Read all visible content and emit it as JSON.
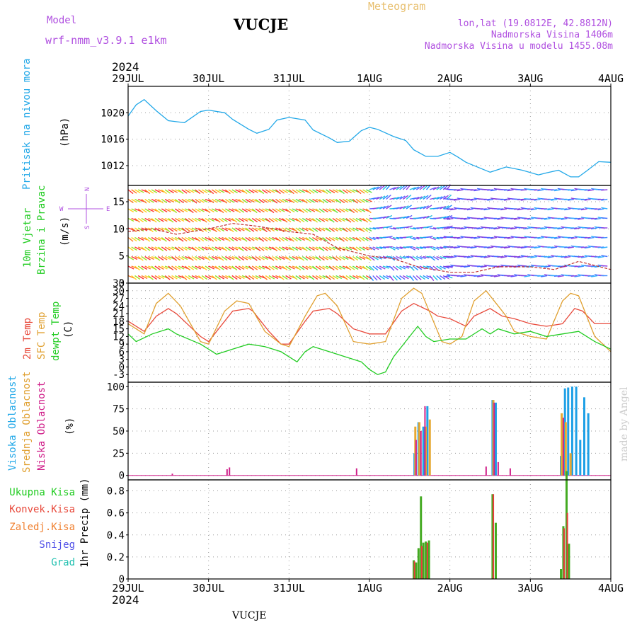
{
  "header": {
    "model_label": "Model",
    "model_name": "wrf-nmm_v3.9.1 e1km",
    "station": "VUCJE",
    "product": "Meteogram",
    "lonlat": "lon,lat (19.0812E, 42.8812N)",
    "altitude": "Nadmorska Visina 1406m",
    "model_altitude": "Nadmorska Visina u modelu 1455.08m",
    "footer_station": "VUCJE",
    "credit": "made by Angel"
  },
  "colors": {
    "pressure": "#22a8e8",
    "temp2m": "#e84a3c",
    "sfc": "#e0a030",
    "dewpt": "#22cc22",
    "high_cloud": "#1ea0e6",
    "mid_cloud": "#e6a832",
    "low_cloud": "#d0208a",
    "total_precip": "#44aa22",
    "conv_precip": "#e83c3c",
    "frozen_precip": "#f08030",
    "snow": "#5050e8",
    "hail": "#20c0b0",
    "header_purple": "#b050e0",
    "header_gold": "#e8c070",
    "grid": "#999999"
  },
  "time_axis": {
    "year": "2024",
    "labels": [
      "29JUL",
      "30JUL",
      "31JUL",
      "1AUG",
      "2AUG",
      "3AUG",
      "4AUG"
    ],
    "days": [
      0,
      1,
      2,
      3,
      4,
      5,
      6
    ]
  },
  "panel_labels": {
    "pressure": {
      "label": "Pritisak na nivou mora",
      "unit": "(hPa)"
    },
    "wind": {
      "label1": "10m Vjetar",
      "label2": "Brzina i Pravac",
      "unit": "(m/s)",
      "compass_n": "N",
      "compass_s": "S",
      "compass_w": "W",
      "compass_e": "E"
    },
    "temp": {
      "label1": "2m Temp",
      "label2": "SFC Temp",
      "label3": "dewpt Temp",
      "unit": "(C)"
    },
    "cloud": {
      "label1": "Visoka Oblacnost",
      "label2": "Srednja Oblacnost",
      "label3": "Niska Oblacnost",
      "unit": "(%)"
    },
    "precip": {
      "label1": "Ukupna Kisa",
      "label2": "Konvek.Kisa",
      "label3": "Zaledj.Kisa",
      "label4": "Snijeg",
      "label5": "Grad",
      "unit": "1hr Precip (mm)"
    }
  },
  "chart_data": [
    {
      "type": "line",
      "name": "pressure",
      "ylim": [
        1009,
        1024
      ],
      "yticks": [
        1012,
        1016,
        1020
      ],
      "x": [
        0,
        0.1,
        0.2,
        0.35,
        0.5,
        0.7,
        0.9,
        1.0,
        1.2,
        1.3,
        1.5,
        1.6,
        1.75,
        1.85,
        2.0,
        2.2,
        2.3,
        2.5,
        2.6,
        2.75,
        2.9,
        3.0,
        3.1,
        3.3,
        3.45,
        3.55,
        3.7,
        3.85,
        4.0,
        4.1,
        4.2,
        4.4,
        4.5,
        4.7,
        4.9,
        5.1,
        5.2,
        5.35,
        5.5,
        5.6,
        5.7,
        5.85,
        6.0
      ],
      "y": [
        1019.5,
        1021.2,
        1022.0,
        1020.3,
        1018.8,
        1018.5,
        1020.2,
        1020.4,
        1020.0,
        1019.0,
        1017.5,
        1016.9,
        1017.5,
        1018.9,
        1019.3,
        1018.9,
        1017.4,
        1016.2,
        1015.5,
        1015.7,
        1017.3,
        1017.8,
        1017.5,
        1016.4,
        1015.8,
        1014.4,
        1013.4,
        1013.4,
        1014.0,
        1013.3,
        1012.5,
        1011.5,
        1011.0,
        1011.8,
        1011.3,
        1010.6,
        1010.9,
        1011.3,
        1010.3,
        1010.3,
        1011.2,
        1012.6,
        1012.5
      ]
    },
    {
      "type": "line",
      "name": "wind speed",
      "ylim": [
        0,
        18
      ],
      "yticks": [
        0,
        5,
        10,
        15
      ],
      "x": [
        0,
        0.3,
        0.6,
        1.0,
        1.3,
        1.6,
        2.0,
        2.3,
        2.6,
        3.0,
        3.3,
        3.6,
        4.0,
        4.3,
        4.6,
        5.0,
        5.3,
        5.6,
        6.0
      ],
      "y": [
        9.5,
        10.0,
        9.0,
        10.0,
        11.0,
        10.5,
        9.5,
        9.0,
        6.5,
        5.0,
        4.5,
        3.0,
        2.0,
        2.0,
        3.0,
        3.0,
        2.5,
        4.0,
        2.5
      ]
    },
    {
      "type": "line",
      "name": "temperature",
      "ylim": [
        -6,
        33
      ],
      "yticks": [
        -3,
        0,
        3,
        6,
        9,
        12,
        15,
        18,
        21,
        24,
        27,
        30,
        33
      ],
      "series": [
        {
          "name": "2m Temp",
          "x": [
            0,
            0.2,
            0.35,
            0.5,
            0.6,
            0.9,
            1.0,
            1.2,
            1.3,
            1.5,
            1.55,
            1.75,
            1.9,
            2.0,
            2.2,
            2.3,
            2.5,
            2.6,
            2.8,
            3.0,
            3.1,
            3.2,
            3.4,
            3.55,
            3.75,
            3.85,
            4.0,
            4.2,
            4.3,
            4.5,
            4.6,
            4.65,
            4.8,
            5.0,
            5.2,
            5.4,
            5.55,
            5.65,
            5.8,
            6.0
          ],
          "y": [
            18,
            14,
            20,
            23,
            21,
            12,
            10,
            18,
            22,
            23,
            22,
            14,
            9,
            9,
            18,
            22,
            23,
            21,
            15,
            13,
            13,
            13,
            22,
            25,
            22,
            20,
            19,
            16,
            20,
            23,
            21,
            20,
            19,
            17,
            16,
            17,
            23,
            22,
            17,
            17
          ]
        },
        {
          "name": "SFC Temp",
          "x": [
            0,
            0.2,
            0.35,
            0.5,
            0.65,
            0.9,
            1.0,
            1.2,
            1.35,
            1.5,
            1.7,
            1.9,
            2.0,
            2.2,
            2.35,
            2.45,
            2.6,
            2.8,
            3.0,
            3.2,
            3.4,
            3.55,
            3.65,
            3.9,
            4.0,
            4.15,
            4.3,
            4.45,
            4.6,
            4.7,
            4.8,
            5.0,
            5.2,
            5.4,
            5.5,
            5.6,
            5.8,
            6.0
          ],
          "y": [
            17,
            13,
            25,
            29,
            24,
            10,
            9,
            22,
            26,
            25,
            14,
            9,
            8,
            20,
            28,
            29,
            24,
            10,
            9,
            10,
            27,
            31,
            29,
            10,
            9,
            12,
            26,
            30,
            24,
            20,
            14,
            12,
            11,
            26,
            29,
            28,
            12,
            6
          ]
        },
        {
          "name": "dewpt Temp",
          "x": [
            0,
            0.1,
            0.3,
            0.5,
            0.6,
            0.9,
            1.0,
            1.1,
            1.3,
            1.5,
            1.7,
            1.9,
            2.0,
            2.1,
            2.2,
            2.3,
            2.5,
            2.7,
            2.9,
            3.0,
            3.1,
            3.2,
            3.3,
            3.5,
            3.6,
            3.7,
            3.8,
            4.0,
            4.2,
            4.4,
            4.5,
            4.6,
            4.8,
            5.0,
            5.2,
            5.4,
            5.6,
            5.8,
            6.0
          ],
          "y": [
            13,
            10,
            13,
            15,
            13,
            9,
            7,
            5,
            7,
            9,
            8,
            6,
            4,
            2,
            6,
            8,
            6,
            4,
            2,
            -1,
            -3,
            -2,
            4,
            12,
            16,
            12,
            10,
            11,
            11,
            15,
            13,
            15,
            13,
            14,
            12,
            13,
            14,
            10,
            7
          ]
        }
      ]
    },
    {
      "type": "bar",
      "name": "cloud cover",
      "ylim": [
        -5,
        105
      ],
      "yticks": [
        0,
        25,
        50,
        75,
        100
      ],
      "series": [
        {
          "name": "Visoka Oblacnost",
          "x": [
            3.56,
            3.61,
            3.67,
            3.72,
            4.53,
            4.57,
            5.38,
            5.43,
            5.47,
            5.52,
            5.57,
            5.62,
            5.67,
            5.72
          ],
          "values": [
            25,
            60,
            55,
            78,
            85,
            82,
            22,
            98,
            99,
            100,
            100,
            40,
            88,
            70
          ]
        },
        {
          "name": "Srednja Oblacnost",
          "x": [
            3.57,
            3.62,
            3.7,
            3.75,
            4.54,
            5.39,
            5.44,
            5.5
          ],
          "values": [
            55,
            60,
            55,
            63,
            85,
            70,
            60,
            25
          ]
        },
        {
          "name": "Niska Oblacnost",
          "x": [
            0.55,
            1.23,
            1.26,
            2.84,
            3.58,
            3.64,
            3.69,
            4.45,
            4.55,
            4.6,
            4.75,
            5.41
          ],
          "values": [
            2,
            7,
            9,
            8,
            40,
            50,
            78,
            10,
            82,
            15,
            8,
            65
          ]
        }
      ]
    },
    {
      "type": "bar",
      "name": "1hr precipitation",
      "ylim": [
        0,
        0.9
      ],
      "yticks": [
        0,
        0.2,
        0.4,
        0.6,
        0.8
      ],
      "series": [
        {
          "name": "Ukupna Kisa",
          "x": [
            3.55,
            3.58,
            3.61,
            3.64,
            3.67,
            3.7,
            3.74,
            4.53,
            4.57,
            5.38,
            5.41,
            5.45,
            5.48
          ],
          "values": [
            0.17,
            0.15,
            0.28,
            0.75,
            0.33,
            0.34,
            0.35,
            0.77,
            0.51,
            0.09,
            0.48,
            0.98,
            0.32
          ]
        },
        {
          "name": "Konvek.Kisa",
          "x": [
            3.56,
            3.65,
            3.72,
            4.54,
            5.42,
            5.46
          ],
          "values": [
            0.16,
            0.3,
            0.33,
            0.77,
            0.46,
            0.6
          ]
        }
      ]
    }
  ]
}
